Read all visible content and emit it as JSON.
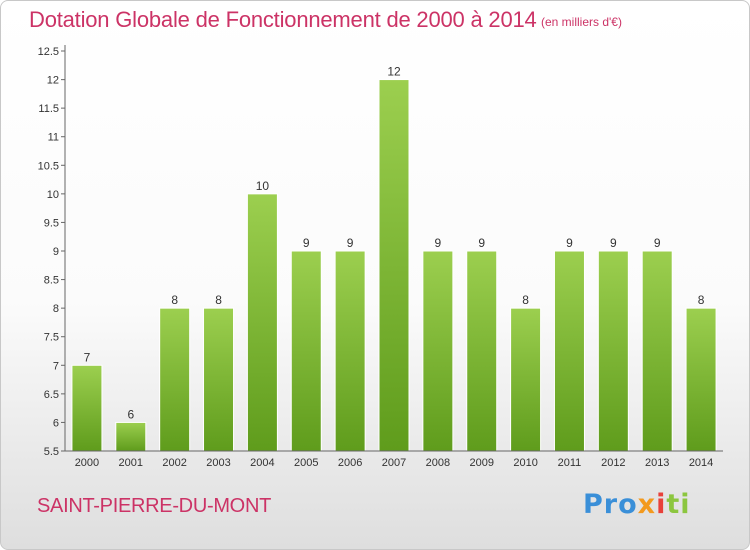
{
  "chart_data": {
    "type": "bar",
    "title": "Dotation Globale de Fonctionnement de 2000 à 2014",
    "subtitle": "(en milliers d'€)",
    "categories": [
      "2000",
      "2001",
      "2002",
      "2003",
      "2004",
      "2005",
      "2006",
      "2007",
      "2008",
      "2009",
      "2010",
      "2011",
      "2012",
      "2013",
      "2014"
    ],
    "values": [
      7,
      6,
      8,
      8,
      10,
      9,
      9,
      12,
      9,
      9,
      8,
      9,
      9,
      9,
      8
    ],
    "value_labels": [
      "7",
      "6",
      "8",
      "8",
      "10",
      "9",
      "9",
      "12",
      "9",
      "9",
      "8",
      "9",
      "9",
      "9",
      "8"
    ],
    "ylim": [
      5.5,
      12.5
    ],
    "yticks": [
      5.5,
      6,
      6.5,
      7,
      7.5,
      8,
      8.5,
      9,
      9.5,
      10,
      10.5,
      11,
      11.5,
      12,
      12.5
    ],
    "ytick_labels": [
      "5.5",
      "6",
      "6.5",
      "7",
      "7.5",
      "8",
      "8.5",
      "9",
      "9.5",
      "10",
      "10.5",
      "11",
      "11.5",
      "12",
      "12.5"
    ],
    "xlabel": "",
    "ylabel": "",
    "grid": false,
    "bar_color_top": "#9ccf4f",
    "bar_color_bottom": "#5f9c1c"
  },
  "footer": {
    "commune": "SAINT-PIERRE-DU-MONT",
    "logo_parts": [
      "Pro",
      "x",
      "i",
      "ti"
    ]
  },
  "colors": {
    "title": "#cc3366",
    "axis": "#666666",
    "tick_text": "#333333"
  }
}
